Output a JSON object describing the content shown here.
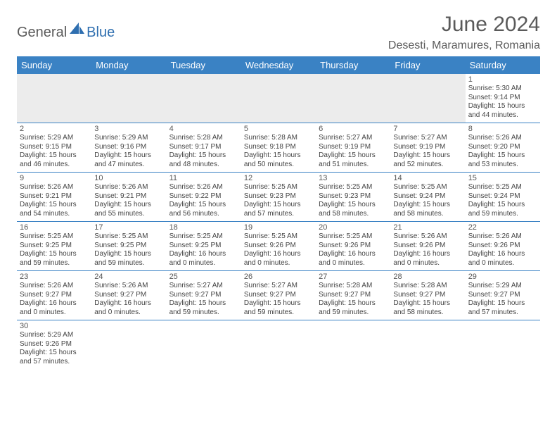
{
  "logo": {
    "text1": "General",
    "text2": "Blue",
    "sail_color": "#2f6fb0"
  },
  "title": "June 2024",
  "location": "Desesti, Maramures, Romania",
  "colors": {
    "header_bg": "#3a82c4",
    "header_fg": "#ffffff",
    "rule": "#3a82c4",
    "blank_row_bg": "#ececec"
  },
  "weekdays": [
    "Sunday",
    "Monday",
    "Tuesday",
    "Wednesday",
    "Thursday",
    "Friday",
    "Saturday"
  ],
  "weeks": [
    [
      null,
      null,
      null,
      null,
      null,
      null,
      {
        "d": "1",
        "sr": "Sunrise: 5:30 AM",
        "ss": "Sunset: 9:14 PM",
        "dl1": "Daylight: 15 hours",
        "dl2": "and 44 minutes."
      }
    ],
    [
      {
        "d": "2",
        "sr": "Sunrise: 5:29 AM",
        "ss": "Sunset: 9:15 PM",
        "dl1": "Daylight: 15 hours",
        "dl2": "and 46 minutes."
      },
      {
        "d": "3",
        "sr": "Sunrise: 5:29 AM",
        "ss": "Sunset: 9:16 PM",
        "dl1": "Daylight: 15 hours",
        "dl2": "and 47 minutes."
      },
      {
        "d": "4",
        "sr": "Sunrise: 5:28 AM",
        "ss": "Sunset: 9:17 PM",
        "dl1": "Daylight: 15 hours",
        "dl2": "and 48 minutes."
      },
      {
        "d": "5",
        "sr": "Sunrise: 5:28 AM",
        "ss": "Sunset: 9:18 PM",
        "dl1": "Daylight: 15 hours",
        "dl2": "and 50 minutes."
      },
      {
        "d": "6",
        "sr": "Sunrise: 5:27 AM",
        "ss": "Sunset: 9:19 PM",
        "dl1": "Daylight: 15 hours",
        "dl2": "and 51 minutes."
      },
      {
        "d": "7",
        "sr": "Sunrise: 5:27 AM",
        "ss": "Sunset: 9:19 PM",
        "dl1": "Daylight: 15 hours",
        "dl2": "and 52 minutes."
      },
      {
        "d": "8",
        "sr": "Sunrise: 5:26 AM",
        "ss": "Sunset: 9:20 PM",
        "dl1": "Daylight: 15 hours",
        "dl2": "and 53 minutes."
      }
    ],
    [
      {
        "d": "9",
        "sr": "Sunrise: 5:26 AM",
        "ss": "Sunset: 9:21 PM",
        "dl1": "Daylight: 15 hours",
        "dl2": "and 54 minutes."
      },
      {
        "d": "10",
        "sr": "Sunrise: 5:26 AM",
        "ss": "Sunset: 9:21 PM",
        "dl1": "Daylight: 15 hours",
        "dl2": "and 55 minutes."
      },
      {
        "d": "11",
        "sr": "Sunrise: 5:26 AM",
        "ss": "Sunset: 9:22 PM",
        "dl1": "Daylight: 15 hours",
        "dl2": "and 56 minutes."
      },
      {
        "d": "12",
        "sr": "Sunrise: 5:25 AM",
        "ss": "Sunset: 9:23 PM",
        "dl1": "Daylight: 15 hours",
        "dl2": "and 57 minutes."
      },
      {
        "d": "13",
        "sr": "Sunrise: 5:25 AM",
        "ss": "Sunset: 9:23 PM",
        "dl1": "Daylight: 15 hours",
        "dl2": "and 58 minutes."
      },
      {
        "d": "14",
        "sr": "Sunrise: 5:25 AM",
        "ss": "Sunset: 9:24 PM",
        "dl1": "Daylight: 15 hours",
        "dl2": "and 58 minutes."
      },
      {
        "d": "15",
        "sr": "Sunrise: 5:25 AM",
        "ss": "Sunset: 9:24 PM",
        "dl1": "Daylight: 15 hours",
        "dl2": "and 59 minutes."
      }
    ],
    [
      {
        "d": "16",
        "sr": "Sunrise: 5:25 AM",
        "ss": "Sunset: 9:25 PM",
        "dl1": "Daylight: 15 hours",
        "dl2": "and 59 minutes."
      },
      {
        "d": "17",
        "sr": "Sunrise: 5:25 AM",
        "ss": "Sunset: 9:25 PM",
        "dl1": "Daylight: 15 hours",
        "dl2": "and 59 minutes."
      },
      {
        "d": "18",
        "sr": "Sunrise: 5:25 AM",
        "ss": "Sunset: 9:25 PM",
        "dl1": "Daylight: 16 hours",
        "dl2": "and 0 minutes."
      },
      {
        "d": "19",
        "sr": "Sunrise: 5:25 AM",
        "ss": "Sunset: 9:26 PM",
        "dl1": "Daylight: 16 hours",
        "dl2": "and 0 minutes."
      },
      {
        "d": "20",
        "sr": "Sunrise: 5:25 AM",
        "ss": "Sunset: 9:26 PM",
        "dl1": "Daylight: 16 hours",
        "dl2": "and 0 minutes."
      },
      {
        "d": "21",
        "sr": "Sunrise: 5:26 AM",
        "ss": "Sunset: 9:26 PM",
        "dl1": "Daylight: 16 hours",
        "dl2": "and 0 minutes."
      },
      {
        "d": "22",
        "sr": "Sunrise: 5:26 AM",
        "ss": "Sunset: 9:26 PM",
        "dl1": "Daylight: 16 hours",
        "dl2": "and 0 minutes."
      }
    ],
    [
      {
        "d": "23",
        "sr": "Sunrise: 5:26 AM",
        "ss": "Sunset: 9:27 PM",
        "dl1": "Daylight: 16 hours",
        "dl2": "and 0 minutes."
      },
      {
        "d": "24",
        "sr": "Sunrise: 5:26 AM",
        "ss": "Sunset: 9:27 PM",
        "dl1": "Daylight: 16 hours",
        "dl2": "and 0 minutes."
      },
      {
        "d": "25",
        "sr": "Sunrise: 5:27 AM",
        "ss": "Sunset: 9:27 PM",
        "dl1": "Daylight: 15 hours",
        "dl2": "and 59 minutes."
      },
      {
        "d": "26",
        "sr": "Sunrise: 5:27 AM",
        "ss": "Sunset: 9:27 PM",
        "dl1": "Daylight: 15 hours",
        "dl2": "and 59 minutes."
      },
      {
        "d": "27",
        "sr": "Sunrise: 5:28 AM",
        "ss": "Sunset: 9:27 PM",
        "dl1": "Daylight: 15 hours",
        "dl2": "and 59 minutes."
      },
      {
        "d": "28",
        "sr": "Sunrise: 5:28 AM",
        "ss": "Sunset: 9:27 PM",
        "dl1": "Daylight: 15 hours",
        "dl2": "and 58 minutes."
      },
      {
        "d": "29",
        "sr": "Sunrise: 5:29 AM",
        "ss": "Sunset: 9:27 PM",
        "dl1": "Daylight: 15 hours",
        "dl2": "and 57 minutes."
      }
    ],
    [
      {
        "d": "30",
        "sr": "Sunrise: 5:29 AM",
        "ss": "Sunset: 9:26 PM",
        "dl1": "Daylight: 15 hours",
        "dl2": "and 57 minutes."
      },
      null,
      null,
      null,
      null,
      null,
      null
    ]
  ]
}
